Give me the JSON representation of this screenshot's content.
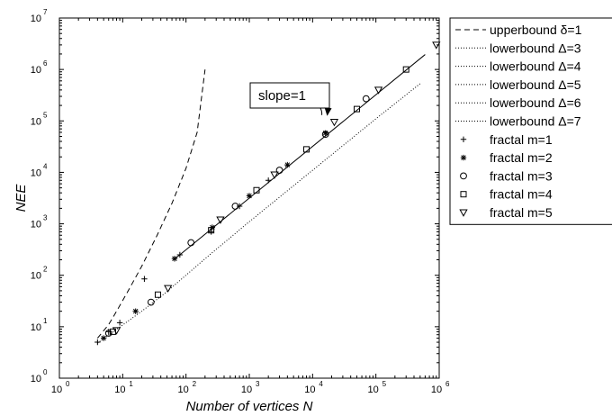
{
  "chart_data": {
    "type": "scatter",
    "title": "",
    "xlabel": "Number of vertices N",
    "ylabel": "NEE",
    "xscale": "log",
    "yscale": "log",
    "xlim": [
      1,
      1000000
    ],
    "ylim": [
      1,
      10000000
    ],
    "grid": false,
    "legend_position": "outside-right",
    "x_ticks": [
      {
        "base": "10",
        "exp": "0"
      },
      {
        "base": "10",
        "exp": "1"
      },
      {
        "base": "10",
        "exp": "2"
      },
      {
        "base": "10",
        "exp": "3"
      },
      {
        "base": "10",
        "exp": "4"
      },
      {
        "base": "10",
        "exp": "5"
      },
      {
        "base": "10",
        "exp": "6"
      }
    ],
    "y_ticks": [
      {
        "base": "10",
        "exp": "0"
      },
      {
        "base": "10",
        "exp": "1"
      },
      {
        "base": "10",
        "exp": "2"
      },
      {
        "base": "10",
        "exp": "3"
      },
      {
        "base": "10",
        "exp": "4"
      },
      {
        "base": "10",
        "exp": "5"
      },
      {
        "base": "10",
        "exp": "6"
      },
      {
        "base": "10",
        "exp": "7"
      }
    ],
    "annotation": {
      "text": "slope=1",
      "arrow_to": [
        17000,
        130000
      ]
    },
    "fit_line": {
      "name": "",
      "x": [
        64,
        600000
      ],
      "y": [
        200,
        1950000
      ]
    },
    "series": [
      {
        "name": "upperbound δ=1",
        "style": "dashed",
        "x": [
          4,
          6,
          8,
          12,
          20,
          35,
          60,
          100,
          150,
          200
        ],
        "y": [
          6,
          11,
          20,
          48,
          150,
          600,
          2500,
          12000,
          60000,
          1000000
        ]
      },
      {
        "name": "lowerbound Δ=3",
        "style": "dotted",
        "x": [
          4,
          20,
          50,
          200,
          1000,
          10000,
          100000,
          500000
        ],
        "y": [
          4.8,
          20,
          48,
          210,
          1100,
          11000,
          110000,
          530000
        ]
      },
      {
        "name": "lowerbound Δ=4",
        "style": "dotted",
        "x": [],
        "y": []
      },
      {
        "name": "lowerbound Δ=5",
        "style": "dotted",
        "x": [],
        "y": []
      },
      {
        "name": "lowerbound Δ=6",
        "style": "dotted",
        "x": [],
        "y": []
      },
      {
        "name": "lowerbound Δ=7",
        "style": "dotted",
        "x": [],
        "y": []
      },
      {
        "name": "fractal m=1",
        "marker": "plus",
        "x": [
          4,
          6,
          9,
          22,
          80,
          250,
          700,
          2000
        ],
        "y": [
          5,
          8,
          12,
          85,
          250,
          700,
          2200,
          7000
        ]
      },
      {
        "name": "fractal m=2",
        "marker": "star",
        "x": [
          5,
          16,
          66,
          260,
          1000,
          4000,
          16000
        ],
        "y": [
          6,
          20,
          210,
          850,
          3500,
          14000,
          58000
        ]
      },
      {
        "name": "fractal m=3",
        "marker": "circle",
        "x": [
          6,
          28,
          120,
          600,
          3000,
          16000,
          70000
        ],
        "y": [
          7.5,
          30,
          430,
          2200,
          11000,
          55000,
          270000
        ]
      },
      {
        "name": "fractal m=4",
        "marker": "square",
        "x": [
          7,
          36,
          250,
          1300,
          8000,
          50000,
          300000
        ],
        "y": [
          8,
          42,
          750,
          4500,
          28000,
          170000,
          1000000
        ]
      },
      {
        "name": "fractal m=5",
        "marker": "triangle",
        "x": [
          8,
          52,
          350,
          2500,
          22000,
          110000,
          900000
        ],
        "y": [
          8.5,
          56,
          1200,
          9000,
          95000,
          400000,
          3000000
        ]
      }
    ]
  }
}
